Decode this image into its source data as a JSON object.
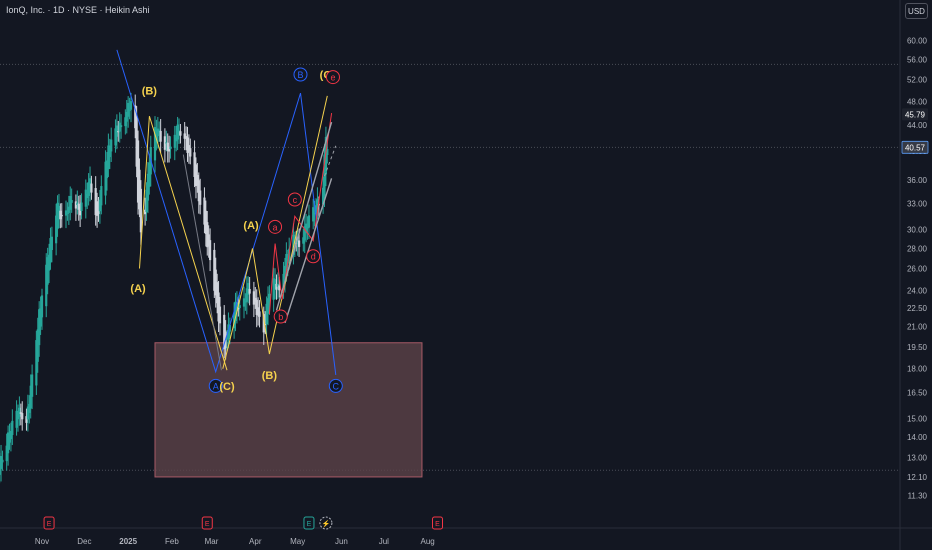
{
  "header": {
    "title": "IonQ, Inc. · 1D · NYSE · Heikin Ashi",
    "currency_button": "USD"
  },
  "colors": {
    "background": "#131722",
    "bull": "#26a69a",
    "bear": "#d1d4dc",
    "wave_abc": "#2962ff",
    "wave_yellow": "#f5d24e",
    "wave_red": "#f23645",
    "channel": "#a0a3ab",
    "zone": "#5d4249",
    "axis_text": "#b2b5be",
    "grid_dots": "#4a4d57"
  },
  "chart_data": {
    "type": "candlestick",
    "style": "Heikin Ashi",
    "y_scale": "log",
    "ylim": [
      10.6,
      64.5
    ],
    "x_ticks": [
      "Nov",
      "Dec",
      "2025",
      "Feb",
      "Mar",
      "Apr",
      "May",
      "Jun",
      "Jul",
      "Aug"
    ],
    "y_ticks": [
      "60.00",
      "56.00",
      "52.00",
      "48.00",
      "44.00",
      "40.00",
      "36.00",
      "33.00",
      "30.00",
      "28.00",
      "26.00",
      "24.00",
      "22.50",
      "21.00",
      "19.50",
      "18.00",
      "16.50",
      "15.00",
      "14.00",
      "13.00",
      "12.10",
      "11.30"
    ],
    "price_labels": [
      {
        "value": 45.79,
        "text": "45.79"
      },
      {
        "value": 40.57,
        "text": "40.57"
      }
    ],
    "horizontal_levels": [
      55.0,
      40.57,
      12.4
    ],
    "zone": {
      "x_start": "2025-01-20",
      "x_end": "2025-07-28",
      "y_low": 12.1,
      "y_high": 19.8
    },
    "anchors": [
      [
        "2024-10-01",
        12.5
      ],
      [
        "2024-10-08",
        14.0
      ],
      [
        "2024-10-15",
        15.5
      ],
      [
        "2024-10-21",
        14.8
      ],
      [
        "2024-10-25",
        17.5
      ],
      [
        "2024-10-30",
        22.0
      ],
      [
        "2024-11-05",
        27.0
      ],
      [
        "2024-11-12",
        33.0
      ],
      [
        "2024-11-16",
        30.5
      ],
      [
        "2024-11-22",
        34.0
      ],
      [
        "2024-11-28",
        32.0
      ],
      [
        "2024-12-05",
        36.0
      ],
      [
        "2024-12-10",
        31.0
      ],
      [
        "2024-12-15",
        37.5
      ],
      [
        "2024-12-21",
        43.0
      ],
      [
        "2024-12-27",
        44.0
      ],
      [
        "2025-01-01",
        47.0
      ],
      [
        "2025-01-05",
        48.5
      ],
      [
        "2025-01-08",
        33.5
      ],
      [
        "2025-01-11",
        28.5
      ],
      [
        "2025-01-16",
        39.0
      ],
      [
        "2025-01-21",
        44.0
      ],
      [
        "2025-01-26",
        41.0
      ],
      [
        "2025-01-31",
        40.0
      ],
      [
        "2025-02-05",
        43.5
      ],
      [
        "2025-02-10",
        42.0
      ],
      [
        "2025-02-16",
        37.5
      ],
      [
        "2025-02-22",
        32.0
      ],
      [
        "2025-02-28",
        27.0
      ],
      [
        "2025-03-04",
        23.5
      ],
      [
        "2025-03-07",
        21.0
      ],
      [
        "2025-03-10",
        19.0
      ],
      [
        "2025-03-14",
        21.5
      ],
      [
        "2025-03-19",
        23.0
      ],
      [
        "2025-03-22",
        22.0
      ],
      [
        "2025-03-27",
        24.5
      ],
      [
        "2025-03-31",
        23.0
      ],
      [
        "2025-04-04",
        21.5
      ],
      [
        "2025-04-07",
        20.5
      ],
      [
        "2025-04-10",
        23.5
      ],
      [
        "2025-04-14",
        25.0
      ],
      [
        "2025-04-18",
        24.0
      ],
      [
        "2025-04-23",
        27.0
      ],
      [
        "2025-04-28",
        29.0
      ],
      [
        "2025-05-02",
        28.5
      ],
      [
        "2025-05-07",
        30.5
      ],
      [
        "2025-05-12",
        32.0
      ],
      [
        "2025-05-16",
        33.5
      ],
      [
        "2025-05-19",
        35.5
      ],
      [
        "2025-05-21",
        42.5
      ],
      [
        "2025-05-22",
        40.57
      ]
    ],
    "waves": [
      {
        "name": "ABC",
        "color": "#2962ff",
        "points": [
          [
            "2024-12-24",
            58.0
          ],
          [
            "2025-03-04",
            17.8
          ],
          [
            "2025-05-03",
            49.5
          ],
          [
            "2025-05-28",
            17.6
          ]
        ]
      },
      {
        "name": "yellow-1",
        "color": "#f5d24e",
        "points": [
          [
            "2025-01-09",
            26.0
          ],
          [
            "2025-01-16",
            45.5
          ],
          [
            "2025-03-12",
            17.9
          ]
        ]
      },
      {
        "name": "yellow-2",
        "color": "#f5d24e",
        "points": [
          [
            "2025-03-09",
            18.0
          ],
          [
            "2025-03-30",
            28.0
          ],
          [
            "2025-04-11",
            19.0
          ],
          [
            "2025-05-22",
            49.0
          ]
        ]
      },
      {
        "name": "gray-1",
        "color": "#787b86",
        "points": [
          [
            "2025-02-09",
            39.5
          ],
          [
            "2025-03-08",
            17.9
          ]
        ]
      },
      {
        "name": "red",
        "color": "#f23645",
        "points": [
          [
            "2025-04-11",
            22.0
          ],
          [
            "2025-04-15",
            28.5
          ],
          [
            "2025-04-20",
            23.2
          ],
          [
            "2025-04-29",
            31.5
          ],
          [
            "2025-05-12",
            28.8
          ],
          [
            "2025-05-25",
            46.0
          ]
        ]
      }
    ],
    "channel": [
      {
        "from": [
          "2025-04-16",
          22.3
        ],
        "to": [
          "2025-05-25",
          44.5
        ]
      },
      {
        "from": [
          "2025-04-22",
          21.3
        ],
        "to": [
          "2025-05-25",
          36.2
        ]
      },
      {
        "from": [
          "2025-05-20",
          36.5
        ],
        "to": [
          "2025-05-28",
          40.8
        ],
        "dashed": true
      }
    ],
    "wave_labels": [
      {
        "text": "(A)",
        "style": "yellow",
        "x": "2025-01-08",
        "y": 24.2
      },
      {
        "text": "(B)",
        "style": "yellow",
        "x": "2025-01-16",
        "y": 50.0
      },
      {
        "text": "A",
        "style": "circle-blue",
        "x": "2025-03-04",
        "y": 16.9
      },
      {
        "text": "(C)",
        "style": "yellow",
        "x": "2025-03-12",
        "y": 16.9
      },
      {
        "text": "(A)",
        "style": "yellow",
        "x": "2025-03-29",
        "y": 30.5
      },
      {
        "text": "(B)",
        "style": "yellow",
        "x": "2025-04-11",
        "y": 17.6
      },
      {
        "text": "a",
        "style": "circle-red",
        "x": "2025-04-15",
        "y": 30.3
      },
      {
        "text": "b",
        "style": "circle-red",
        "x": "2025-04-19",
        "y": 21.8
      },
      {
        "text": "c",
        "style": "circle-red",
        "x": "2025-04-29",
        "y": 33.5
      },
      {
        "text": "d",
        "style": "circle-red",
        "x": "2025-05-12",
        "y": 27.2
      },
      {
        "text": "B",
        "style": "circle-blue",
        "x": "2025-05-03",
        "y": 53.0
      },
      {
        "text": "(C)",
        "style": "yellow",
        "x": "2025-05-22",
        "y": 53.0
      },
      {
        "text": "e",
        "style": "circle-red",
        "x": "2025-05-26",
        "y": 52.5
      },
      {
        "text": "C",
        "style": "circle-blue",
        "x": "2025-05-28",
        "y": 16.9
      }
    ],
    "event_markers": [
      {
        "text": "E",
        "x": "2024-11-06",
        "style": "earnings"
      },
      {
        "text": "E",
        "x": "2025-02-26",
        "style": "earnings"
      },
      {
        "text": "E",
        "x": "2025-05-09",
        "style": "earnings-future"
      },
      {
        "text": "⚡",
        "x": "2025-05-21",
        "style": "event"
      },
      {
        "text": "E",
        "x": "2025-08-08",
        "style": "earnings"
      }
    ]
  }
}
